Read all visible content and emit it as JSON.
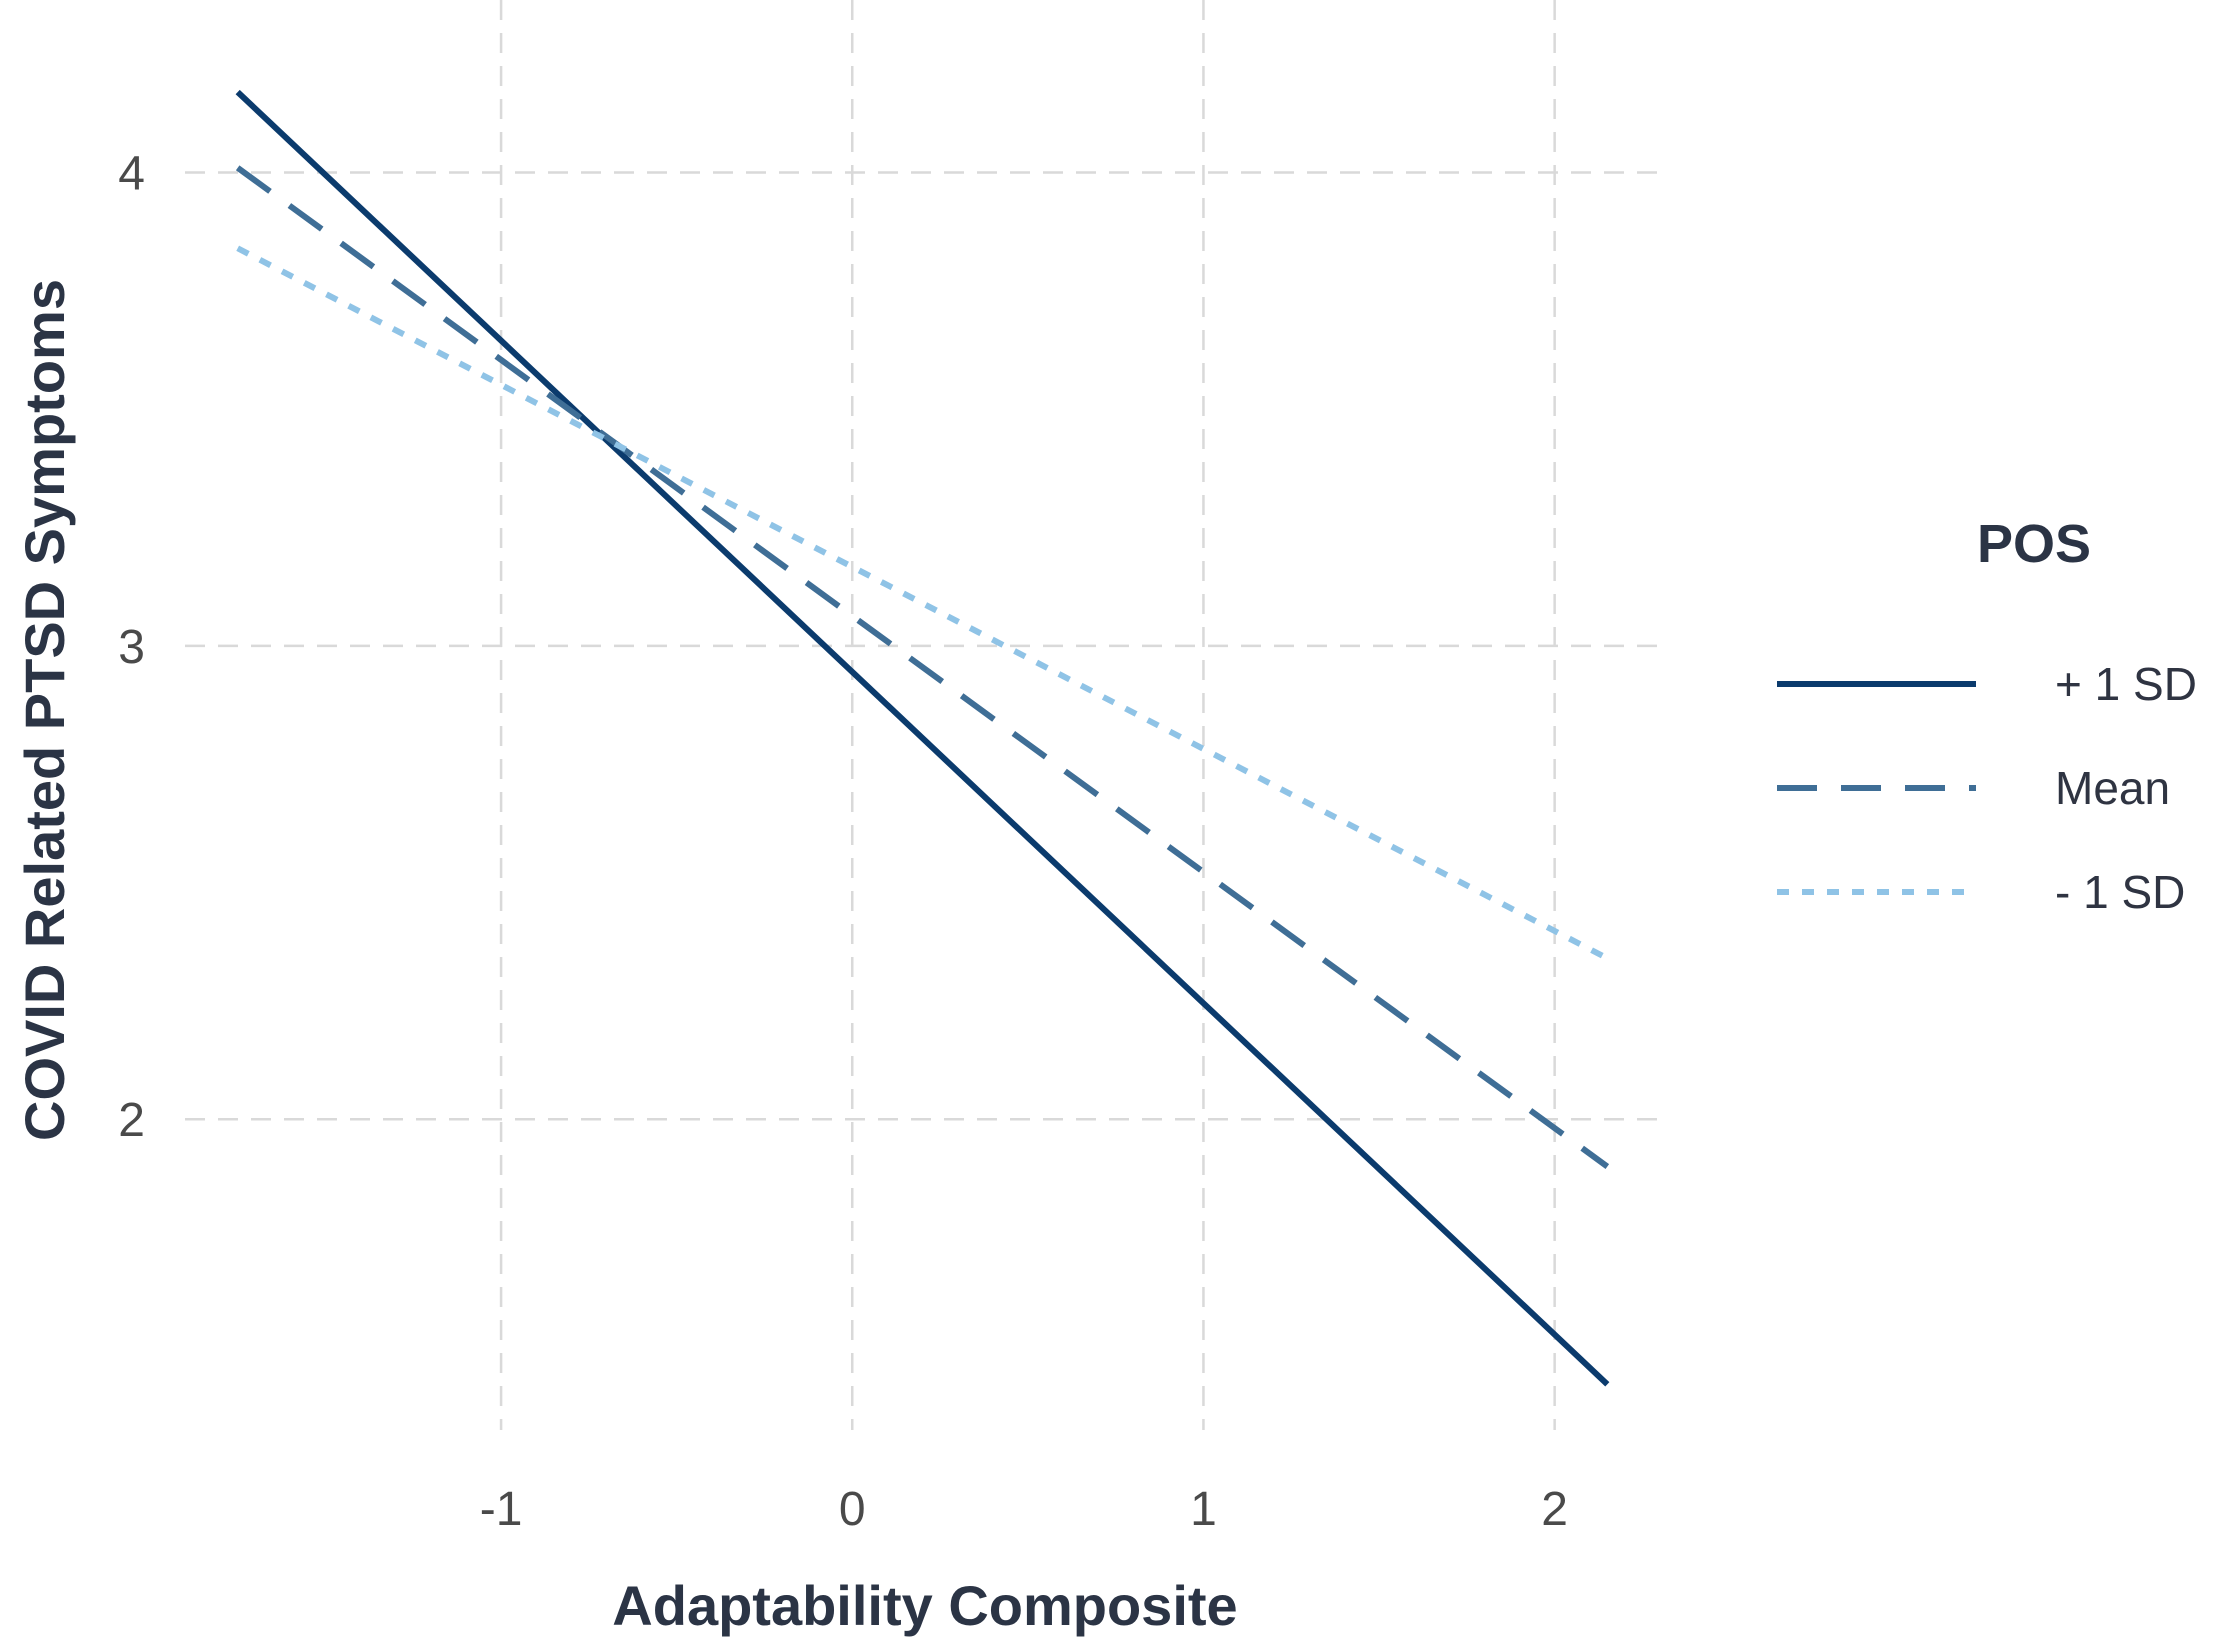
{
  "chart_data": {
    "type": "line",
    "title": "",
    "xlabel": "Adaptability Composite",
    "ylabel": "COVID Related PTSD Symptoms",
    "xlim": [
      -1.9,
      2.3
    ],
    "ylim": [
      1.28,
      4.28
    ],
    "x_ticks": [
      -1,
      0,
      1,
      2
    ],
    "x_tick_labels": [
      "-1",
      "0",
      "1",
      "2"
    ],
    "y_ticks": [
      2,
      3,
      4
    ],
    "y_tick_labels": [
      "2",
      "3",
      "4"
    ],
    "grid": true,
    "legend": {
      "title": "POS",
      "placement": "right"
    },
    "series": [
      {
        "name": "+ 1 SD",
        "color": "#0b3b6d",
        "line_style": "solid",
        "x": [
          -1.75,
          2.15
        ],
        "y": [
          4.17,
          1.44
        ]
      },
      {
        "name": "Mean",
        "color": "#3f6e96",
        "line_style": "dashed",
        "x": [
          -1.75,
          2.15
        ],
        "y": [
          4.01,
          1.9
        ]
      },
      {
        "name": "- 1 SD",
        "color": "#8fc3e6",
        "line_style": "dotted",
        "x": [
          -1.75,
          2.15
        ],
        "y": [
          3.84,
          2.34
        ]
      }
    ]
  }
}
